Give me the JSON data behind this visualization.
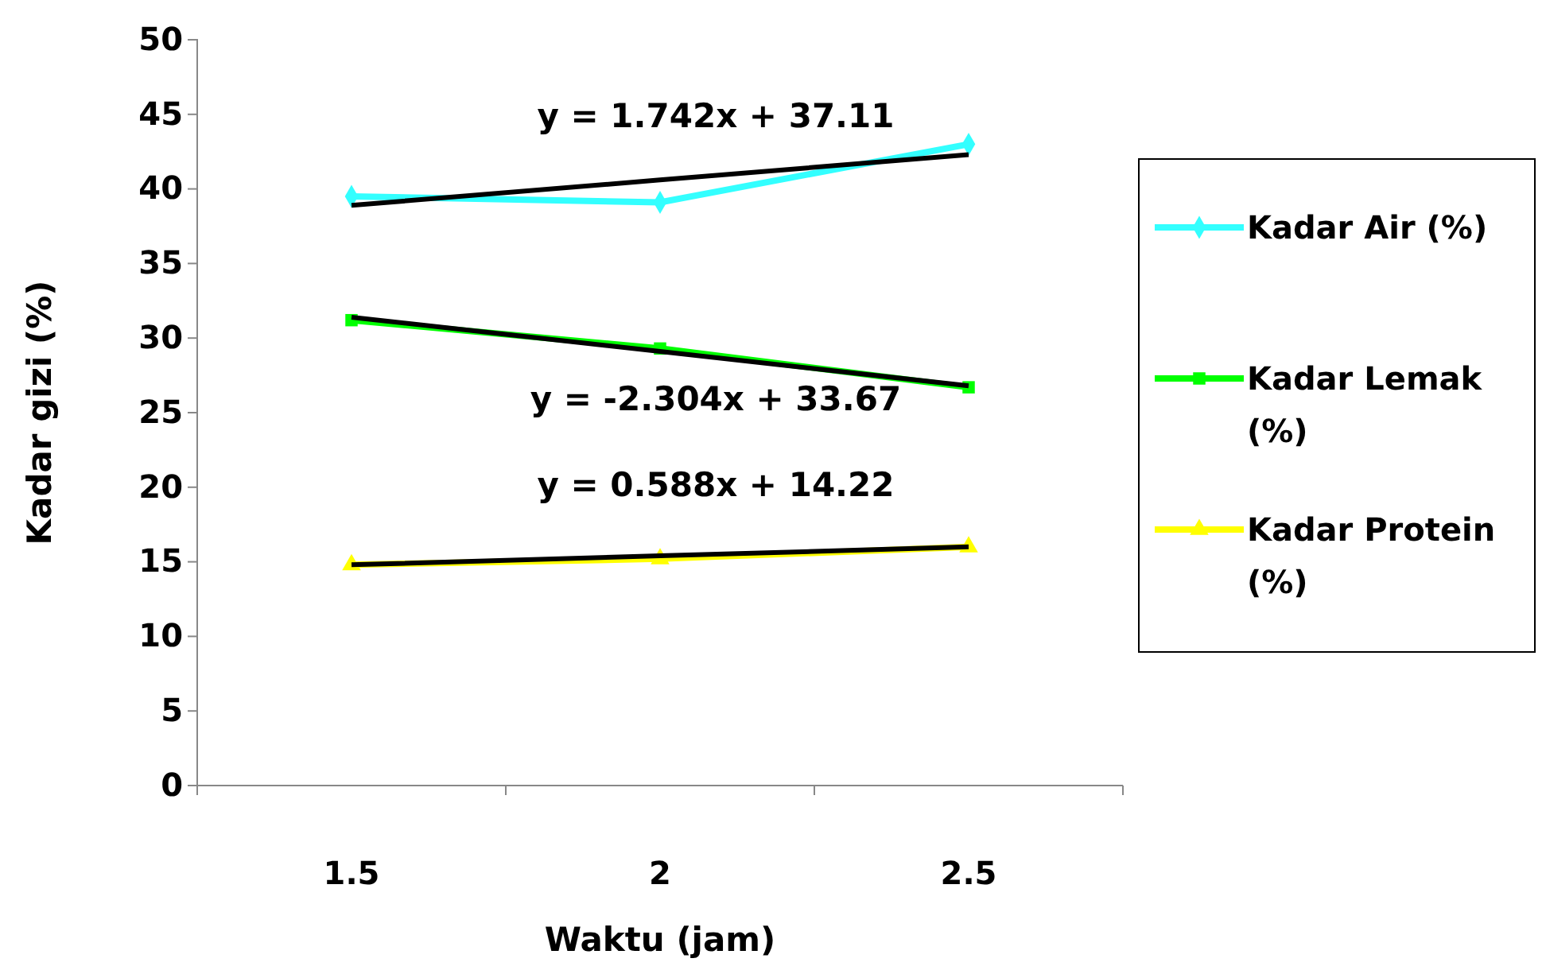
{
  "chart_data": {
    "type": "line",
    "xlabel": "Waktu (jam)",
    "ylabel": "Kadar gizi (%)",
    "categories": [
      "1.5",
      "2",
      "2.5"
    ],
    "ylim": [
      0,
      50
    ],
    "yticks": [
      0,
      5,
      10,
      15,
      20,
      25,
      30,
      35,
      40,
      45,
      50
    ],
    "grid": false,
    "legend": "right",
    "series": [
      {
        "name": "Kadar Air (%)",
        "color": "#33ffff",
        "marker": "diamond",
        "values": [
          39.5,
          39.1,
          43.0
        ]
      },
      {
        "name": "Kadar Lemak (%)",
        "color": "#00ff00",
        "marker": "square",
        "values": [
          31.2,
          29.3,
          26.7
        ]
      },
      {
        "name": "Kadar Protein (%)",
        "color": "#ffff00",
        "marker": "triangle",
        "values": [
          14.8,
          15.2,
          16.0
        ]
      },
      {
        "type": "line",
        "color": "#000000",
        "marker": "none",
        "values": [
          38.9,
          40.6,
          42.3
        ]
      },
      {
        "type": "line",
        "color": "#000000",
        "marker": "none",
        "values": [
          31.4,
          29.1,
          26.8
        ]
      },
      {
        "type": "line",
        "color": "#000000",
        "marker": "none",
        "values": [
          14.8,
          15.4,
          16.0
        ]
      }
    ],
    "annotations": [
      "y = 1.742x + 37.11",
      "y = -2.304x + 33.67",
      "y = 0.588x + 14.22"
    ]
  }
}
